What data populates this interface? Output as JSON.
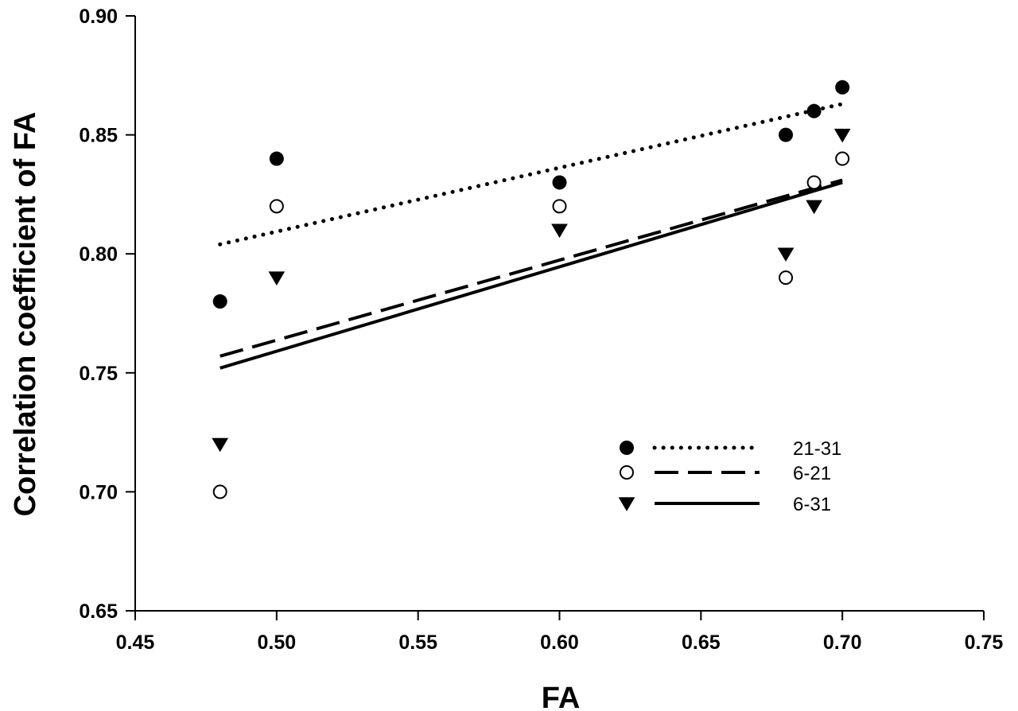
{
  "chart_data": {
    "type": "scatter",
    "title": "",
    "xlabel": "FA",
    "ylabel": "Correlation coefficient of FA",
    "xlim": [
      0.45,
      0.75
    ],
    "ylim": [
      0.65,
      0.9
    ],
    "x_ticks": [
      "0.45",
      "0.50",
      "0.55",
      "0.60",
      "0.65",
      "0.70",
      "0.75"
    ],
    "y_ticks": [
      "0.65",
      "0.70",
      "0.75",
      "0.80",
      "0.85",
      "0.90"
    ],
    "x_tick_values": [
      0.45,
      0.5,
      0.55,
      0.6,
      0.65,
      0.7,
      0.75
    ],
    "y_tick_values": [
      0.65,
      0.7,
      0.75,
      0.8,
      0.85,
      0.9
    ],
    "grid": false,
    "legend_position": "bottom-right",
    "series": [
      {
        "name": "21-31",
        "marker": "filled-circle",
        "line_style": "dotted",
        "x": [
          0.48,
          0.5,
          0.6,
          0.68,
          0.69,
          0.7
        ],
        "y": [
          0.78,
          0.84,
          0.83,
          0.85,
          0.86,
          0.87
        ],
        "fit": [
          [
            0.48,
            0.804
          ],
          [
            0.7,
            0.863
          ]
        ]
      },
      {
        "name": "6-21",
        "marker": "open-circle",
        "line_style": "dashed",
        "x": [
          0.48,
          0.5,
          0.6,
          0.68,
          0.69,
          0.7
        ],
        "y": [
          0.7,
          0.82,
          0.82,
          0.79,
          0.83,
          0.84
        ],
        "fit": [
          [
            0.48,
            0.757
          ],
          [
            0.7,
            0.831
          ]
        ]
      },
      {
        "name": "6-31",
        "marker": "filled-triangle-down",
        "line_style": "solid",
        "x": [
          0.48,
          0.5,
          0.6,
          0.68,
          0.69,
          0.7
        ],
        "y": [
          0.72,
          0.79,
          0.81,
          0.8,
          0.82,
          0.85
        ],
        "fit": [
          [
            0.48,
            0.752
          ],
          [
            0.7,
            0.83
          ]
        ]
      }
    ]
  }
}
